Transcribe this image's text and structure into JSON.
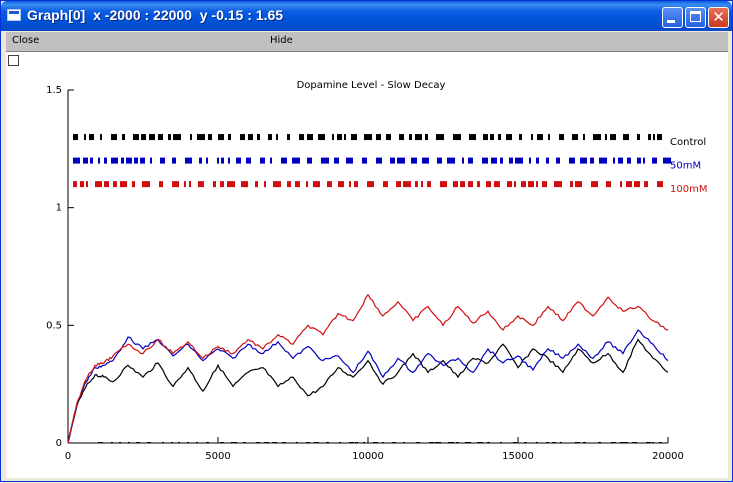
{
  "window": {
    "title": "Graph[0]  x -2000 : 22000  y -0.15 : 1.65"
  },
  "menu": {
    "close_label": "Close",
    "hide_label": "Hide"
  },
  "colors": {
    "control": "#000000",
    "mM50": "#0000c0",
    "mM100": "#d01010"
  },
  "chart_data": {
    "type": "line",
    "title": "Dopamine Level - Slow Decay",
    "xlim": [
      -2000,
      22000
    ],
    "ylim": [
      -0.15,
      1.65
    ],
    "x_ticks": [
      "0",
      "5000",
      "10000",
      "15000",
      "20000"
    ],
    "y_ticks": [
      "0",
      "0.5",
      "1",
      "1.5"
    ],
    "grid": false,
    "legend_position": "right",
    "series": [
      {
        "name": "Control",
        "x": [
          0,
          300,
          600,
          900,
          1200,
          1500,
          2000,
          2500,
          3000,
          3500,
          4000,
          4500,
          5000,
          5500,
          6000,
          6500,
          7000,
          7500,
          8000,
          8500,
          9000,
          9500,
          10000,
          10500,
          11000,
          11500,
          12000,
          12500,
          13000,
          13500,
          14000,
          14500,
          15000,
          15500,
          16000,
          16500,
          17000,
          17500,
          18000,
          18500,
          19000,
          19500,
          20000
        ],
        "y": [
          0,
          0.16,
          0.24,
          0.29,
          0.28,
          0.26,
          0.33,
          0.28,
          0.34,
          0.24,
          0.32,
          0.22,
          0.33,
          0.24,
          0.3,
          0.32,
          0.24,
          0.28,
          0.2,
          0.24,
          0.32,
          0.28,
          0.35,
          0.25,
          0.3,
          0.38,
          0.3,
          0.35,
          0.28,
          0.36,
          0.34,
          0.42,
          0.32,
          0.4,
          0.36,
          0.3,
          0.4,
          0.34,
          0.38,
          0.3,
          0.44,
          0.36,
          0.3
        ]
      },
      {
        "name": "50mM",
        "x": [
          0,
          300,
          600,
          900,
          1200,
          1500,
          2000,
          2500,
          3000,
          3500,
          4000,
          4500,
          5000,
          5500,
          6000,
          6500,
          7000,
          7500,
          8000,
          8500,
          9000,
          9500,
          10000,
          10500,
          11000,
          11500,
          12000,
          12500,
          13000,
          13500,
          14000,
          14500,
          15000,
          15500,
          16000,
          16500,
          17000,
          17500,
          18000,
          18500,
          19000,
          19500,
          20000
        ],
        "y": [
          0,
          0.17,
          0.26,
          0.32,
          0.33,
          0.35,
          0.45,
          0.4,
          0.44,
          0.37,
          0.42,
          0.35,
          0.4,
          0.36,
          0.42,
          0.38,
          0.43,
          0.36,
          0.41,
          0.35,
          0.37,
          0.3,
          0.39,
          0.28,
          0.36,
          0.3,
          0.38,
          0.33,
          0.36,
          0.3,
          0.4,
          0.34,
          0.37,
          0.31,
          0.4,
          0.36,
          0.42,
          0.36,
          0.43,
          0.38,
          0.48,
          0.42,
          0.35
        ]
      },
      {
        "name": "100mM",
        "x": [
          0,
          300,
          600,
          900,
          1200,
          1500,
          2000,
          2500,
          3000,
          3500,
          4000,
          4500,
          5000,
          5500,
          6000,
          6500,
          7000,
          7500,
          8000,
          8500,
          9000,
          9500,
          10000,
          10500,
          11000,
          11500,
          12000,
          12500,
          13000,
          13500,
          14000,
          14500,
          15000,
          15500,
          16000,
          16500,
          17000,
          17500,
          18000,
          18500,
          19000,
          19500,
          20000
        ],
        "y": [
          0,
          0.17,
          0.27,
          0.33,
          0.34,
          0.37,
          0.42,
          0.38,
          0.44,
          0.38,
          0.43,
          0.36,
          0.41,
          0.38,
          0.44,
          0.4,
          0.46,
          0.42,
          0.5,
          0.46,
          0.55,
          0.52,
          0.63,
          0.54,
          0.6,
          0.52,
          0.58,
          0.5,
          0.58,
          0.51,
          0.56,
          0.48,
          0.54,
          0.5,
          0.58,
          0.52,
          0.6,
          0.54,
          0.62,
          0.56,
          0.58,
          0.52,
          0.48
        ]
      }
    ],
    "spike_raster": [
      {
        "name": "Control",
        "y": 1.3
      },
      {
        "name": "50mM",
        "y": 1.2
      },
      {
        "name": "100mM",
        "y": 1.1
      }
    ]
  }
}
